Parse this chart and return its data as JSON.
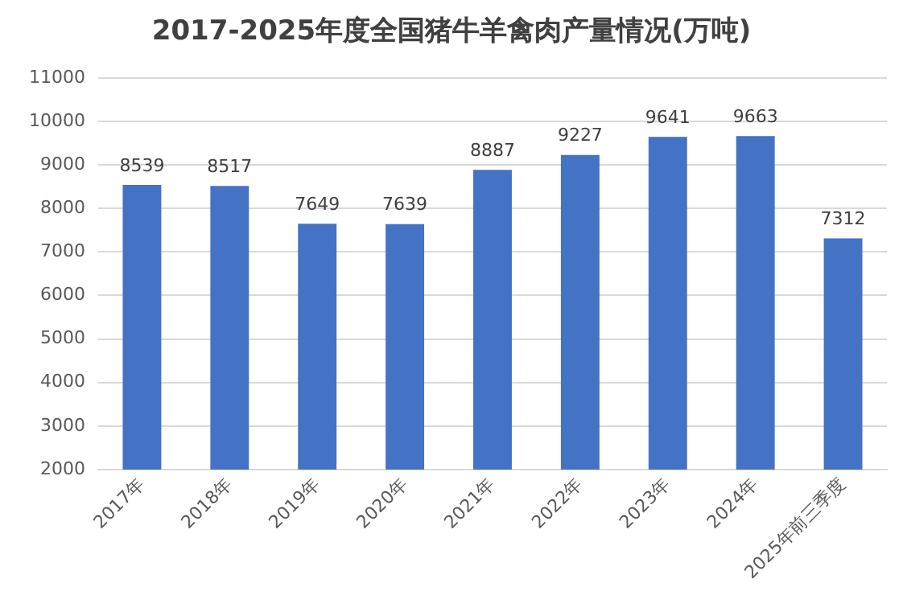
{
  "chart_data": {
    "type": "bar",
    "title": "2017-2025年度全国猪牛羊禽肉产量情况(万吨)",
    "categories": [
      "2017年",
      "2018年",
      "2019年",
      "2020年",
      "2021年",
      "2022年",
      "2023年",
      "2024年",
      "2025年前三季度"
    ],
    "values": [
      8539,
      8517,
      7649,
      7639,
      8887,
      9227,
      9641,
      9663,
      7312
    ],
    "color": "#4472c4",
    "ylim": [
      2000,
      11000
    ],
    "yticks": [
      2000,
      3000,
      4000,
      5000,
      6000,
      7000,
      8000,
      9000,
      10000,
      11000
    ],
    "grid": "y",
    "data_labels": true,
    "legend": false
  }
}
